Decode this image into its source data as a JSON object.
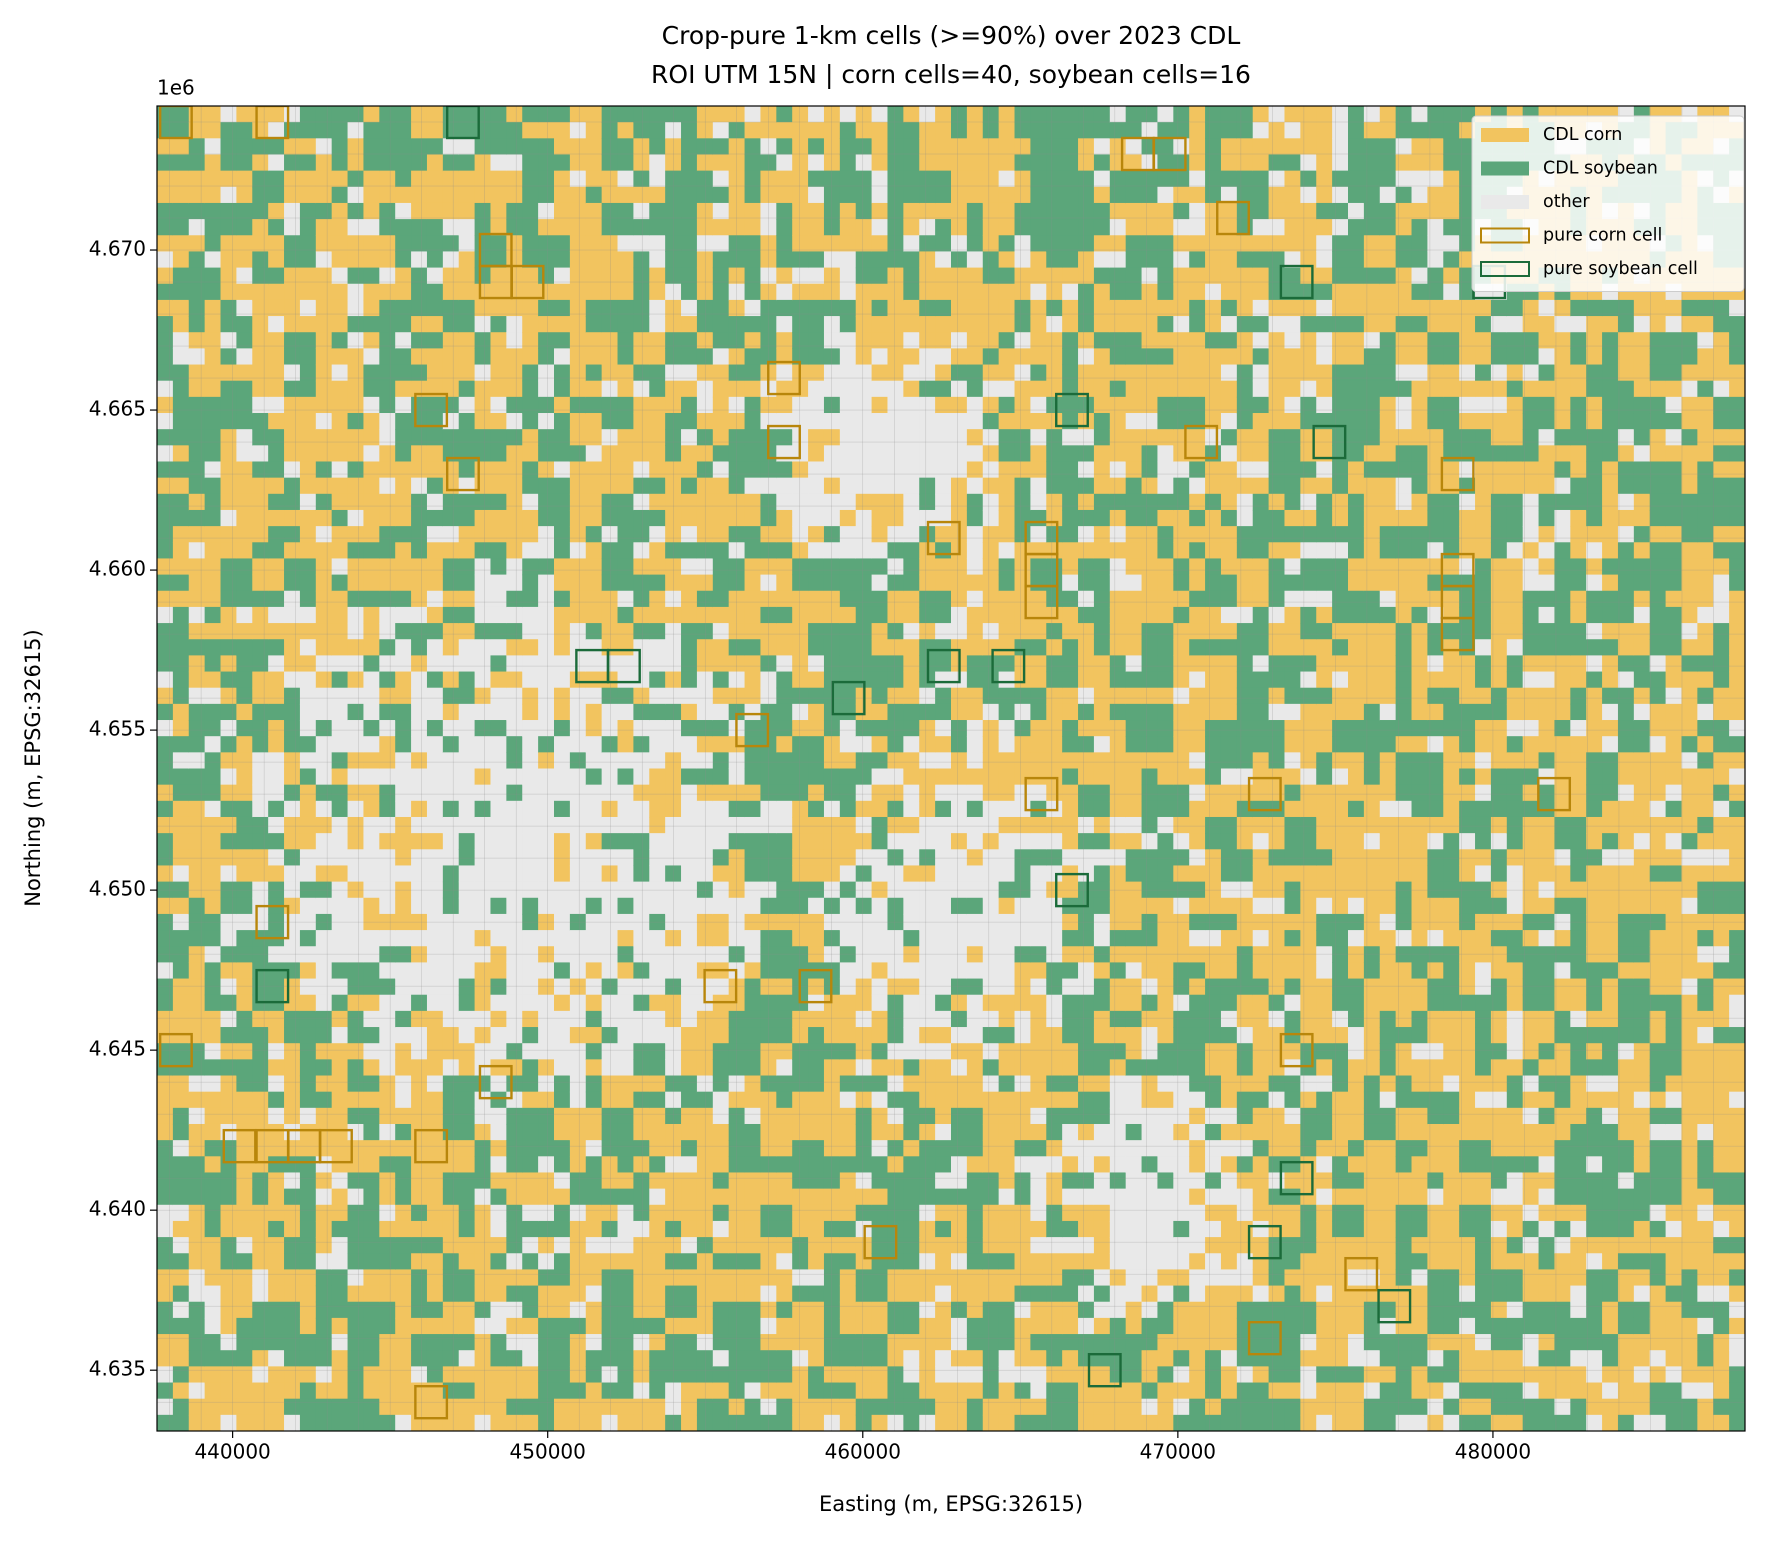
{
  "chart_data": {
    "type": "raster_map",
    "title": "Crop-pure 1-km cells (>=90%) over 2023 CDL",
    "subtitle": "ROI UTM 15N | corn cells=40, soybean cells=16",
    "x_label": "Easting (m, EPSG:32615)",
    "y_label": "Northing (m, EPSG:32615)",
    "y_offset_label": "1e6",
    "xlim": [
      437600,
      488000
    ],
    "ylim": [
      4633100,
      4674500
    ],
    "xticks": [
      440000,
      450000,
      460000,
      470000,
      480000
    ],
    "yticks": [
      {
        "value": 4635000,
        "label": "4.635"
      },
      {
        "value": 4640000,
        "label": "4.640"
      },
      {
        "value": 4645000,
        "label": "4.645"
      },
      {
        "value": 4650000,
        "label": "4.650"
      },
      {
        "value": 4655000,
        "label": "4.655"
      },
      {
        "value": 4660000,
        "label": "4.660"
      },
      {
        "value": 4665000,
        "label": "4.665"
      },
      {
        "value": 4670000,
        "label": "4.670"
      }
    ],
    "grid": true,
    "legend": "upper right",
    "layers": [
      {
        "name": "CDL corn",
        "color": "#f2c45f"
      },
      {
        "name": "CDL soybean",
        "color": "#5ba67a"
      },
      {
        "name": "other",
        "color": "#e9e9e9"
      }
    ],
    "series": [
      {
        "name": "pure corn cell",
        "color": "#b8860b",
        "x": [
          438200,
          441260,
          468730,
          469740,
          471750,
          448350,
          448350,
          449360,
          446300,
          457500,
          457500,
          447310,
          470740,
          462570,
          465670,
          465670,
          465670,
          478880,
          478880,
          478880,
          478880,
          456490,
          465670,
          472760,
          481940,
          441260,
          455480,
          458500,
          438200,
          448350,
          473770,
          440220,
          441260,
          442270,
          443280,
          446300,
          460560,
          475820,
          472760,
          446300
        ],
        "y": [
          4674000,
          4674000,
          4673000,
          4673000,
          4671000,
          4670000,
          4669000,
          4669000,
          4665000,
          4666000,
          4664000,
          4663000,
          4664000,
          4661000,
          4661000,
          4660000,
          4659000,
          4663000,
          4660000,
          4659000,
          4658000,
          4655000,
          4653000,
          4653000,
          4653000,
          4649000,
          4647000,
          4647000,
          4645000,
          4644000,
          4645000,
          4642000,
          4642000,
          4642000,
          4642000,
          4642000,
          4639000,
          4638000,
          4636000,
          4634000
        ]
      },
      {
        "name": "pure soybean cell",
        "color": "#1b6b3a",
        "x": [
          447310,
          473770,
          479880,
          466640,
          474810,
          451410,
          452420,
          459550,
          462570,
          464620,
          466640,
          441260,
          473770,
          472760,
          476870,
          467680
        ],
        "y": [
          4674000,
          4669000,
          4669000,
          4665000,
          4664000,
          4657000,
          4657000,
          4656000,
          4657000,
          4657000,
          4650000,
          4647000,
          4641000,
          4639000,
          4637000,
          4635000
        ]
      }
    ]
  }
}
